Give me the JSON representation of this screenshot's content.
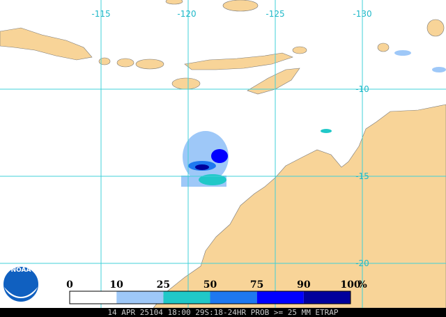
{
  "map": {
    "lon_labels": [
      "-115",
      "-120",
      "-125",
      "-130"
    ],
    "lat_labels": [
      "-10",
      "-15",
      "-20"
    ]
  },
  "legend": {
    "labels": [
      "0",
      "10",
      "25",
      "50",
      "75",
      "90",
      "100"
    ],
    "unit": "%",
    "colors": [
      "#ffffff",
      "#9ec8f8",
      "#20c8c8",
      "#1e78f0",
      "#0000ff",
      "#00009c"
    ]
  },
  "logo": "NOAA",
  "footer": "14 APR 25104 18:00 29S:18-24HR PROB >= 25 MM ETRAP"
}
